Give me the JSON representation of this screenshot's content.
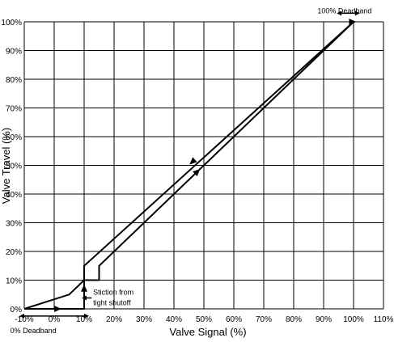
{
  "chart_data": {
    "type": "line",
    "title": "",
    "xlabel": "Valve Signal (%)",
    "ylabel": "Valve Travel (%)",
    "xlim": [
      -10,
      110
    ],
    "ylim": [
      0,
      100
    ],
    "grid": true,
    "x_ticks": [
      "-10%",
      "0%",
      "10%",
      "20%",
      "30%",
      "40%",
      "50%",
      "60%",
      "70%",
      "80%",
      "90%",
      "100%",
      "110%"
    ],
    "y_ticks": [
      "0%",
      "10%",
      "20%",
      "30%",
      "40%",
      "50%",
      "60%",
      "70%",
      "80%",
      "90%",
      "100%"
    ],
    "series": [
      {
        "name": "",
        "x": [
          -10,
          0,
          10,
          10,
          15,
          15,
          100
        ],
        "y": [
          0,
          0,
          0,
          10,
          10,
          15,
          100
        ]
      },
      {
        "name": "",
        "x": [
          100,
          10,
          10,
          5,
          -10
        ],
        "y": [
          100,
          15,
          10,
          5,
          0
        ]
      }
    ],
    "annotations": [
      {
        "text": "100% Deadband",
        "x": 97,
        "y": 103
      },
      {
        "text": "0% Deadband",
        "x": -7,
        "y": -5
      },
      {
        "text": "Stiction from",
        "x": 13,
        "y": 6
      },
      {
        "text": "tight shutoff",
        "x": 13,
        "y": 3
      }
    ]
  }
}
